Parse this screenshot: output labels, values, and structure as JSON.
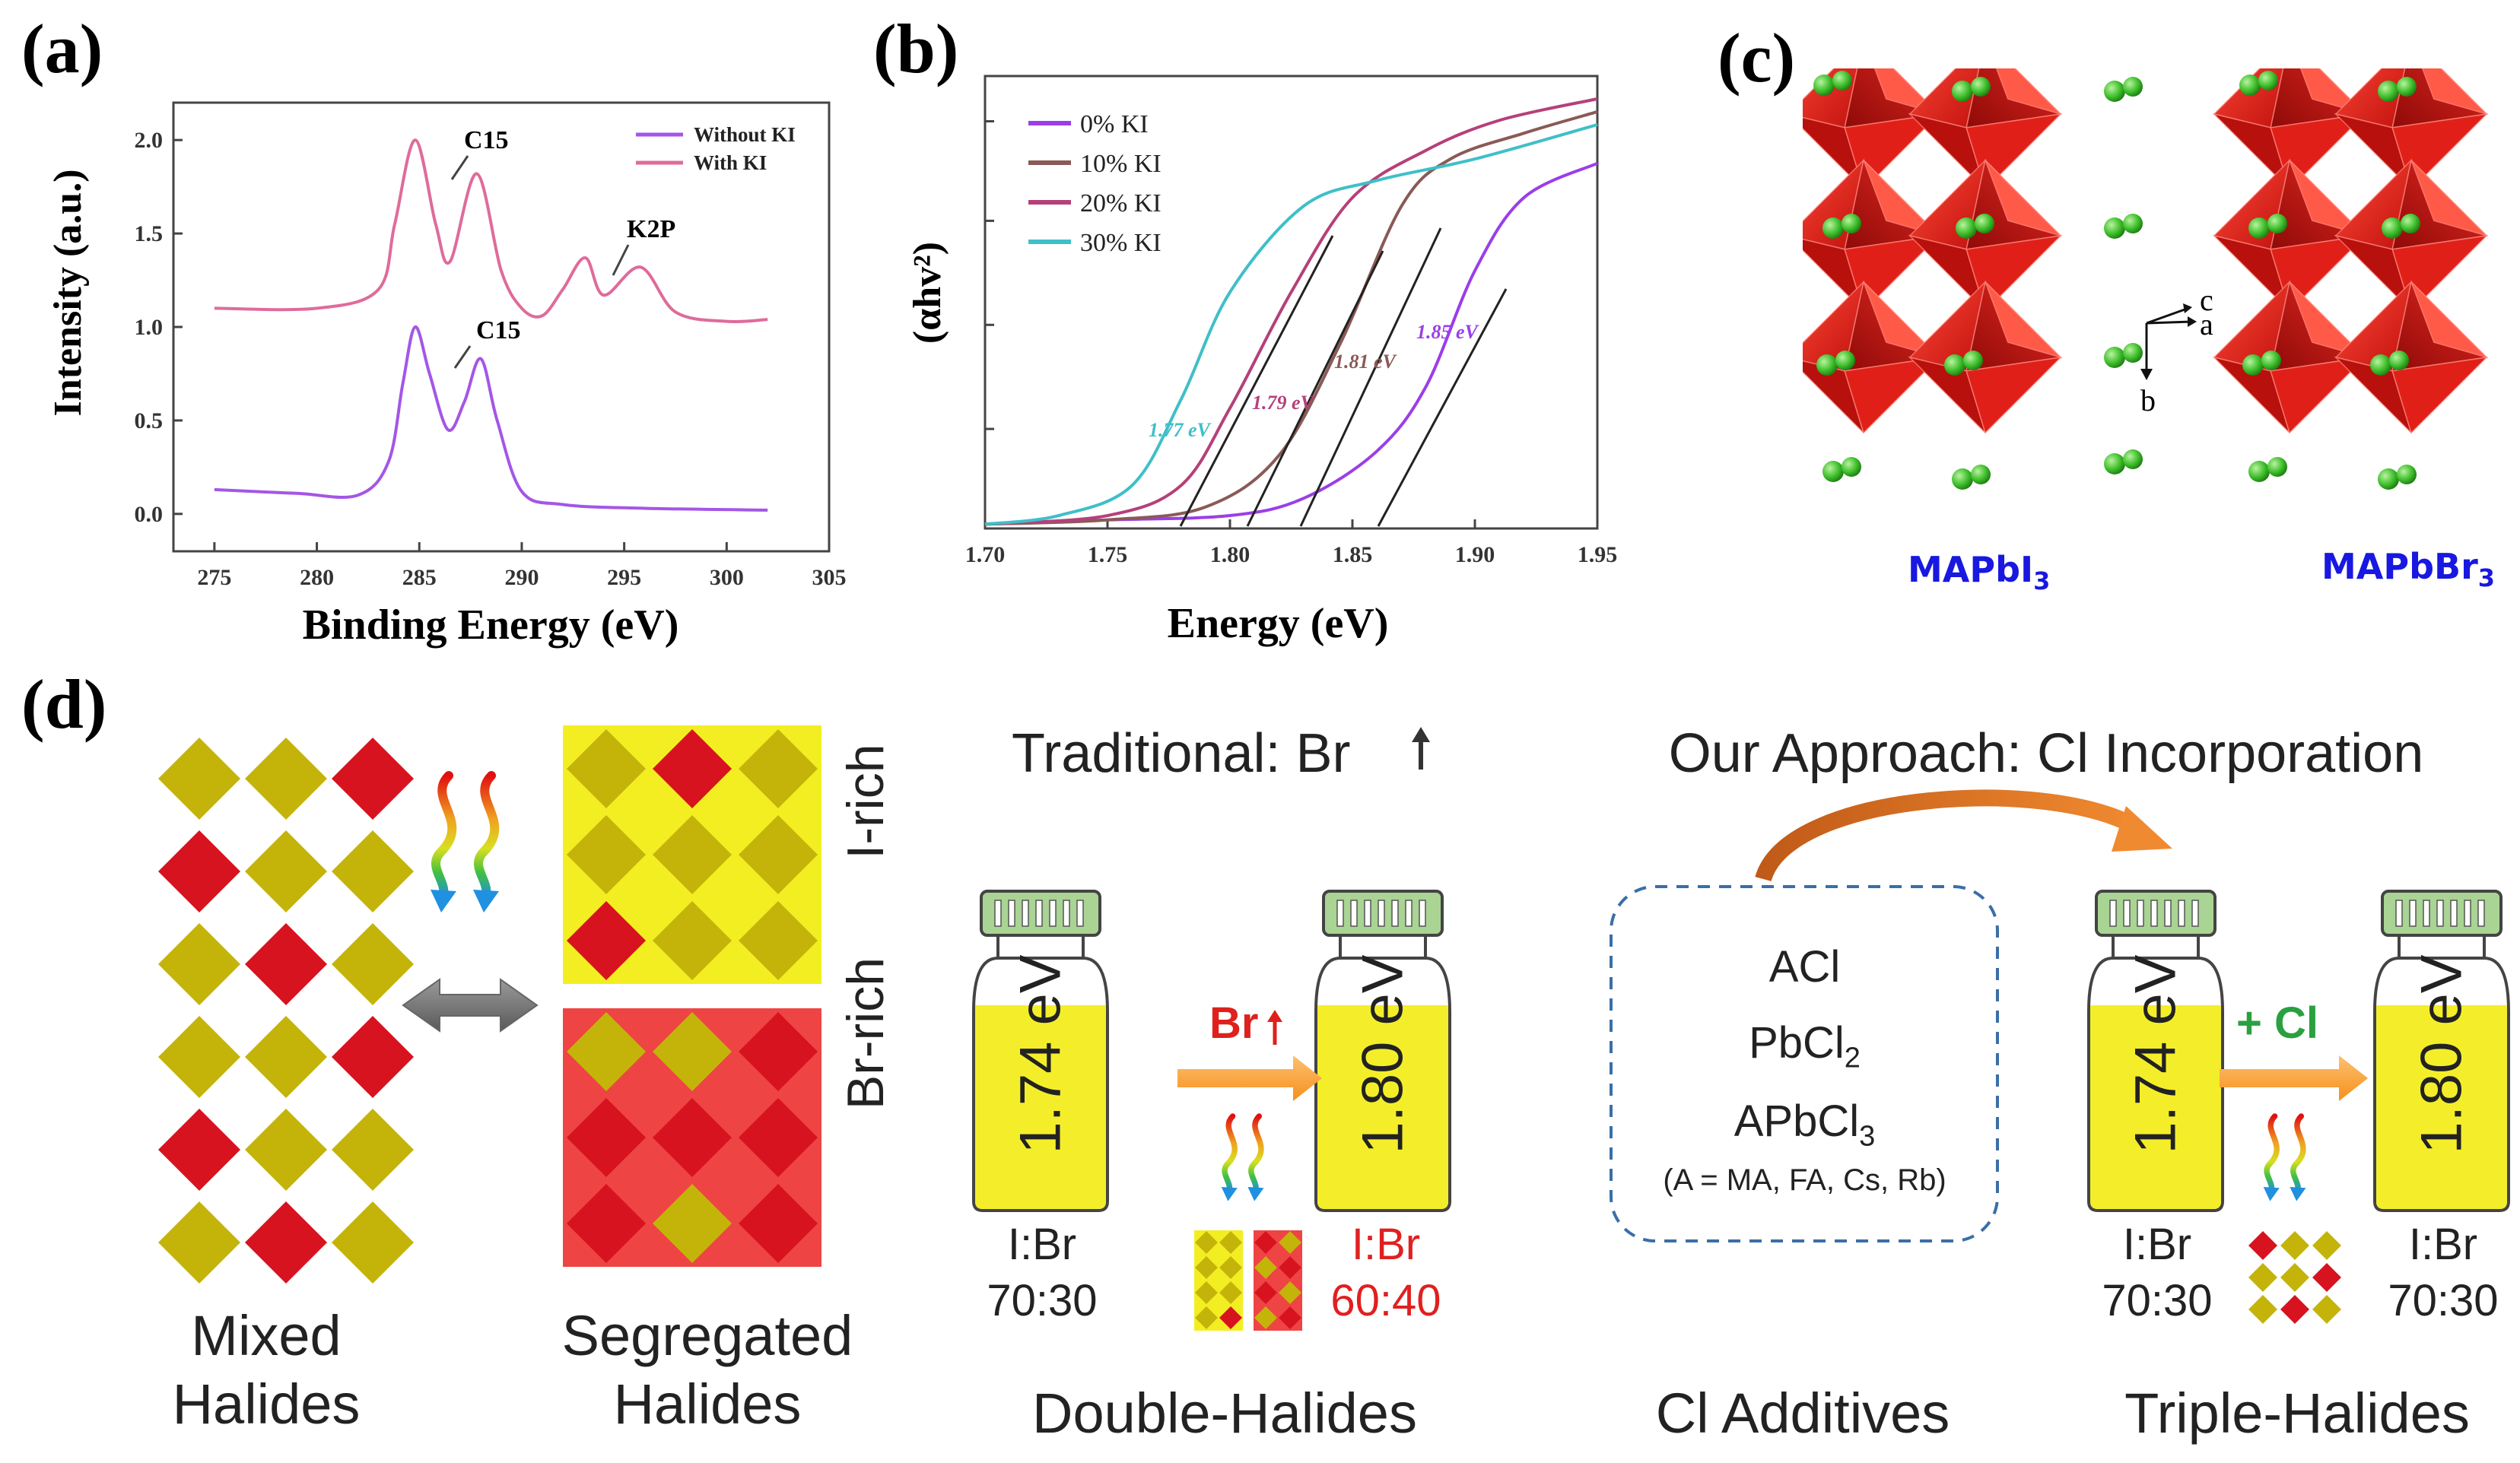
{
  "panel_labels": {
    "a": "(a)",
    "b": "(b)",
    "c": "(c)",
    "d": "(d)"
  },
  "chart_data": [
    {
      "type": "line",
      "panel": "a",
      "title": "",
      "xlabel": "Binding Energy (eV)",
      "ylabel": "Intensity (a.u.)",
      "xlim": [
        273,
        305
      ],
      "ylim": [
        -0.2,
        2.2
      ],
      "xticks": [
        "275",
        "280",
        "285",
        "290",
        "295",
        "300",
        "305"
      ],
      "yticks": [
        "0.0",
        "0.5",
        "1.0",
        "1.5",
        "2.0"
      ],
      "legend": [
        "Without KI",
        "With KI"
      ],
      "series": [
        {
          "name": "Without KI",
          "color": "#a456e6",
          "x": [
            275,
            279,
            282,
            283.5,
            284.2,
            284.8,
            285.5,
            286.4,
            287.2,
            288,
            288.8,
            290,
            292,
            296,
            302
          ],
          "y": [
            0.13,
            0.11,
            0.1,
            0.28,
            0.7,
            1.0,
            0.75,
            0.45,
            0.6,
            0.83,
            0.5,
            0.12,
            0.05,
            0.03,
            0.02
          ]
        },
        {
          "name": "With KI",
          "color": "#df6b9b",
          "x": [
            275,
            280,
            283,
            283.8,
            284.8,
            285.8,
            286.5,
            287.8,
            289,
            290,
            291,
            292,
            293.1,
            294,
            295.8,
            297.5,
            300,
            302
          ],
          "y": [
            1.1,
            1.1,
            1.2,
            1.55,
            2.0,
            1.55,
            1.35,
            1.82,
            1.3,
            1.1,
            1.06,
            1.2,
            1.37,
            1.17,
            1.32,
            1.08,
            1.03,
            1.04
          ]
        }
      ],
      "annotations": [
        "C15",
        "C15",
        "K2P"
      ]
    },
    {
      "type": "line",
      "panel": "b",
      "title": "",
      "xlabel": "Energy (eV)",
      "ylabel": "(αhv²)",
      "xlim": [
        1.7,
        1.95
      ],
      "ylim": [
        0,
        1
      ],
      "xticks": [
        "1.70",
        "1.75",
        "1.80",
        "1.85",
        "1.90",
        "1.95"
      ],
      "legend": [
        "0% KI",
        "10% KI",
        "20% KI",
        "30% KI"
      ],
      "series": [
        {
          "name": "0% KI",
          "color": "#9b3ee8",
          "x": [
            1.7,
            1.75,
            1.8,
            1.83,
            1.86,
            1.88,
            1.9,
            1.92,
            1.95
          ],
          "y": [
            0.01,
            0.02,
            0.03,
            0.07,
            0.18,
            0.33,
            0.6,
            0.77,
            0.85
          ]
        },
        {
          "name": "10% KI",
          "color": "#8a5a56",
          "x": [
            1.7,
            1.75,
            1.79,
            1.82,
            1.845,
            1.87,
            1.89,
            1.92,
            1.95
          ],
          "y": [
            0.01,
            0.02,
            0.05,
            0.17,
            0.43,
            0.75,
            0.86,
            0.92,
            0.97
          ]
        },
        {
          "name": "20% KI",
          "color": "#b5407a",
          "x": [
            1.7,
            1.75,
            1.78,
            1.8,
            1.825,
            1.85,
            1.88,
            1.91,
            1.95
          ],
          "y": [
            0.01,
            0.03,
            0.1,
            0.28,
            0.55,
            0.77,
            0.88,
            0.95,
            1.0
          ]
        },
        {
          "name": "30% KI",
          "color": "#3fbfc8",
          "x": [
            1.7,
            1.73,
            1.76,
            1.78,
            1.8,
            1.83,
            1.86,
            1.9,
            1.95
          ],
          "y": [
            0.01,
            0.03,
            0.1,
            0.3,
            0.55,
            0.75,
            0.81,
            0.86,
            0.94
          ]
        }
      ],
      "annotations": [
        "1.85 eV",
        "1.81 eV",
        "1.79 eV",
        "1.77 eV"
      ]
    }
  ],
  "panel_c": {
    "labels": [
      "MAPbI",
      "MAPbBr"
    ],
    "subscript": "3",
    "axes": {
      "c": "c",
      "a": "a",
      "b": "b"
    }
  },
  "panel_d": {
    "rich_labels": {
      "i_rich": "I-rich",
      "br_rich": "Br-rich"
    },
    "captions": {
      "mixed": [
        "Mixed",
        "Halides"
      ],
      "segregated": [
        "Segregated",
        "Halides"
      ],
      "double": "Double-Halides",
      "cl_additives": "Cl Additives",
      "triple": "Triple-Halides"
    },
    "traditional_title": "Traditional: Br",
    "approach_title": "Our Approach: Cl Incorporation",
    "vials": [
      {
        "energy": "1.74 eV",
        "ratio_label": "I:Br",
        "ratio": "70:30"
      },
      {
        "energy": "1.80 eV",
        "ratio_label": "I:Br",
        "ratio": "60:40"
      },
      {
        "energy": "1.74 eV",
        "ratio_label": "I:Br",
        "ratio": "70:30"
      },
      {
        "energy": "1.80 eV",
        "ratio_label": "I:Br",
        "ratio": "70:30"
      }
    ],
    "arrow_labels": {
      "br": "Br",
      "cl": "+ Cl"
    },
    "additives": {
      "acl": "ACl",
      "pbcl": "PbCl",
      "pbcl_sub": "2",
      "apbcl": "APbCl",
      "apbcl_sub": "3",
      "note": "(A = MA, FA, Cs, Rb)"
    },
    "colors": {
      "red": "#d7131f",
      "olive": "#c4b40a",
      "yellow": "#f3ee22",
      "pink": "#ee4444",
      "vial_fill": "#f4ee2a",
      "cap": "#a9d494"
    }
  }
}
